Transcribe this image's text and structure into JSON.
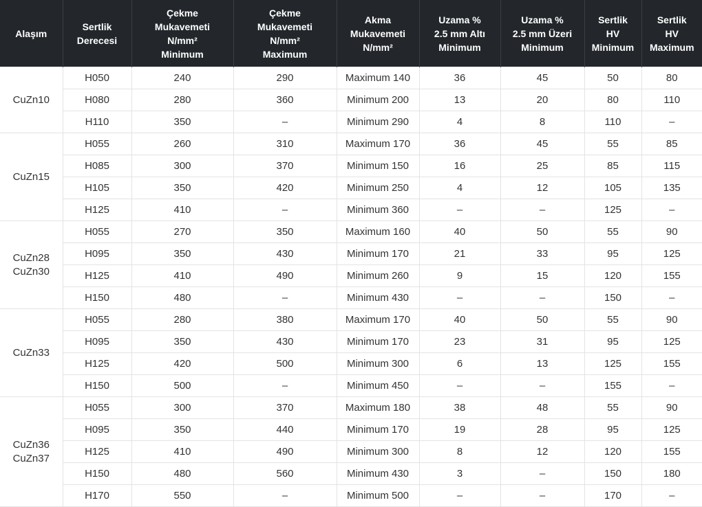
{
  "headers": [
    "Alaşım",
    "Sertlik\nDerecesi",
    "Çekme\nMukavemeti\nN/mm²\nMinimum",
    "Çekme\nMukavemeti\nN/mm²\nMaximum",
    "Akma\nMukavemeti\nN/mm²",
    "Uzama %\n2.5 mm Altı\nMinimum",
    "Uzama %\n2.5 mm Üzeri\nMinimum",
    "Sertlik\nHV\nMinimum",
    "Sertlik\nHV\nMaximum"
  ],
  "groups": [
    {
      "alloy": "CuZn10",
      "rows": [
        [
          "H050",
          "240",
          "290",
          "Maximum 140",
          "36",
          "45",
          "50",
          "80"
        ],
        [
          "H080",
          "280",
          "360",
          "Minimum 200",
          "13",
          "20",
          "80",
          "110"
        ],
        [
          "H110",
          "350",
          "–",
          "Minimum 290",
          "4",
          "8",
          "110",
          "–"
        ]
      ]
    },
    {
      "alloy": "CuZn15",
      "rows": [
        [
          "H055",
          "260",
          "310",
          "Maximum 170",
          "36",
          "45",
          "55",
          "85"
        ],
        [
          "H085",
          "300",
          "370",
          "Minimum 150",
          "16",
          "25",
          "85",
          "115"
        ],
        [
          "H105",
          "350",
          "420",
          "Minimum 250",
          "4",
          "12",
          "105",
          "135"
        ],
        [
          "H125",
          "410",
          "–",
          "Minimum 360",
          "–",
          "–",
          "125",
          "–"
        ]
      ]
    },
    {
      "alloy": "CuZn28\nCuZn30",
      "rows": [
        [
          "H055",
          "270",
          "350",
          "Maximum 160",
          "40",
          "50",
          "55",
          "90"
        ],
        [
          "H095",
          "350",
          "430",
          "Minimum 170",
          "21",
          "33",
          "95",
          "125"
        ],
        [
          "H125",
          "410",
          "490",
          "Minimum 260",
          "9",
          "15",
          "120",
          "155"
        ],
        [
          "H150",
          "480",
          "–",
          "Minimum 430",
          "–",
          "–",
          "150",
          "–"
        ]
      ]
    },
    {
      "alloy": "CuZn33",
      "rows": [
        [
          "H055",
          "280",
          "380",
          "Maximum 170",
          "40",
          "50",
          "55",
          "90"
        ],
        [
          "H095",
          "350",
          "430",
          "Minimum 170",
          "23",
          "31",
          "95",
          "125"
        ],
        [
          "H125",
          "420",
          "500",
          "Minimum 300",
          "6",
          "13",
          "125",
          "155"
        ],
        [
          "H150",
          "500",
          "–",
          "Minimum 450",
          "–",
          "–",
          "155",
          "–"
        ]
      ]
    },
    {
      "alloy": "CuZn36\nCuZn37",
      "rows": [
        [
          "H055",
          "300",
          "370",
          "Maximum 180",
          "38",
          "48",
          "55",
          "90"
        ],
        [
          "H095",
          "350",
          "440",
          "Minimum 170",
          "19",
          "28",
          "95",
          "125"
        ],
        [
          "H125",
          "410",
          "490",
          "Minimum 300",
          "8",
          "12",
          "120",
          "155"
        ],
        [
          "H150",
          "480",
          "560",
          "Minimum 430",
          "3",
          "–",
          "150",
          "180"
        ],
        [
          "H170",
          "550",
          "–",
          "Minimum 500",
          "–",
          "–",
          "170",
          "–"
        ]
      ]
    }
  ]
}
